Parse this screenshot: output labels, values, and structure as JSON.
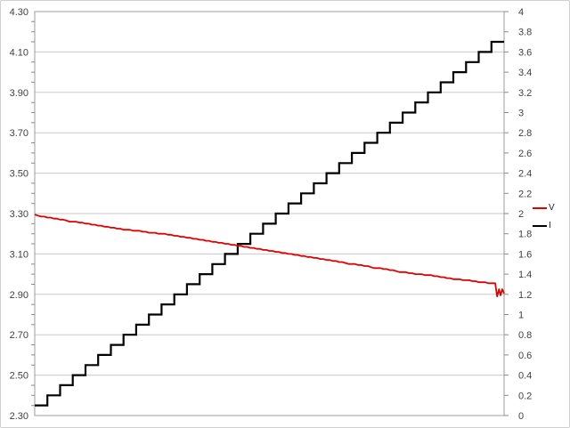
{
  "chart": {
    "title": "",
    "background": "#ffffff",
    "frame_border_color": "#d0d0d0",
    "plot": {
      "border_color": "#9e9e9e",
      "gridline_color": "#c8c8c8",
      "tick_color": "#8a8a8a",
      "label_color": "#3f3f3f"
    },
    "legend": {
      "position": "right",
      "items": [
        {
          "label": "V",
          "color": "#e00000"
        },
        {
          "label": "I",
          "color": "#000000"
        }
      ]
    }
  },
  "chart_data": {
    "type": "line",
    "title": "",
    "x_axis": {
      "label": "",
      "tick_labels_visible": false
    },
    "left_axis": {
      "label": "",
      "min": 2.3,
      "max": 4.3,
      "major_step": 0.2,
      "minor_step": 0.05,
      "tick_labels": [
        "4.30",
        "4.10",
        "3.90",
        "3.70",
        "3.50",
        "3.30",
        "3.10",
        "2.90",
        "2.70",
        "2.50",
        "2.30"
      ]
    },
    "right_axis": {
      "label": "",
      "min": 0,
      "max": 4,
      "major_step": 0.2,
      "tick_labels": [
        "4",
        "3.8",
        "3.6",
        "3.4",
        "3.2",
        "3",
        "2.8",
        "2.6",
        "2.4",
        "2.2",
        "2",
        "1.8",
        "1.6",
        "1.4",
        "1.2",
        "1",
        "0.8",
        "0.6",
        "0.4",
        "0.2",
        "0"
      ]
    },
    "grid": {
      "horizontal": true,
      "vertical": false
    },
    "series": [
      {
        "name": "V",
        "axis": "left",
        "color": "#e00000",
        "line_style": "solid",
        "values": [
          3.295,
          3.28,
          3.27,
          3.26,
          3.25,
          3.24,
          3.23,
          3.22,
          3.215,
          3.205,
          3.2,
          3.19,
          3.18,
          3.17,
          3.16,
          3.15,
          3.14,
          3.13,
          3.12,
          3.11,
          3.1,
          3.09,
          3.08,
          3.07,
          3.06,
          3.05,
          3.04,
          3.03,
          3.02,
          3.01,
          3.0,
          2.995,
          2.985,
          2.975,
          2.97,
          2.96,
          2.955
        ],
        "tail": [
          [
            36.3,
            2.955
          ],
          [
            36.45,
            2.89
          ],
          [
            36.6,
            2.925
          ],
          [
            36.72,
            2.895
          ],
          [
            36.85,
            2.925
          ],
          [
            37,
            2.905
          ]
        ]
      },
      {
        "name": "I",
        "axis": "right",
        "color": "#000000",
        "line_style": "step",
        "values": [
          0.1,
          0.2,
          0.3,
          0.4,
          0.5,
          0.6,
          0.7,
          0.8,
          0.9,
          1.0,
          1.1,
          1.2,
          1.3,
          1.4,
          1.5,
          1.6,
          1.7,
          1.8,
          1.9,
          2.0,
          2.1,
          2.2,
          2.3,
          2.4,
          2.5,
          2.6,
          2.7,
          2.8,
          2.9,
          3.0,
          3.1,
          3.2,
          3.3,
          3.4,
          3.5,
          3.6,
          3.7
        ]
      }
    ]
  }
}
